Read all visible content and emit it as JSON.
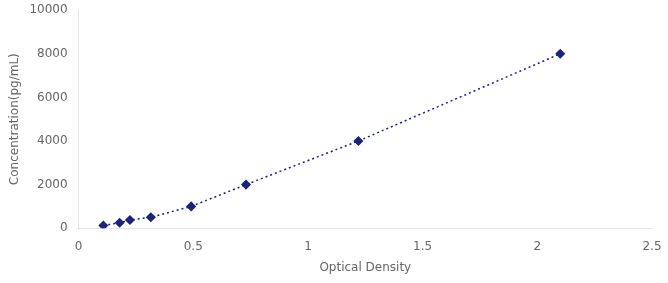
{
  "chart_data": {
    "type": "line",
    "x": [
      0.108,
      0.179,
      0.224,
      0.315,
      0.491,
      0.73,
      1.22,
      2.1
    ],
    "values": [
      125,
      250,
      375,
      500,
      1000,
      2000,
      4000,
      8000
    ],
    "color": "#1a237e",
    "marker": "diamond",
    "line_style": "dotted",
    "xlabel": "Optical Density",
    "ylabel": "Concentration(pg/mL)",
    "xlim": [
      0,
      2.5
    ],
    "ylim": [
      0,
      10000
    ],
    "xticks": [
      0,
      0.5,
      1,
      1.5,
      2,
      2.5
    ],
    "yticks": [
      0,
      2000,
      4000,
      6000,
      8000,
      10000
    ],
    "grid": false
  }
}
